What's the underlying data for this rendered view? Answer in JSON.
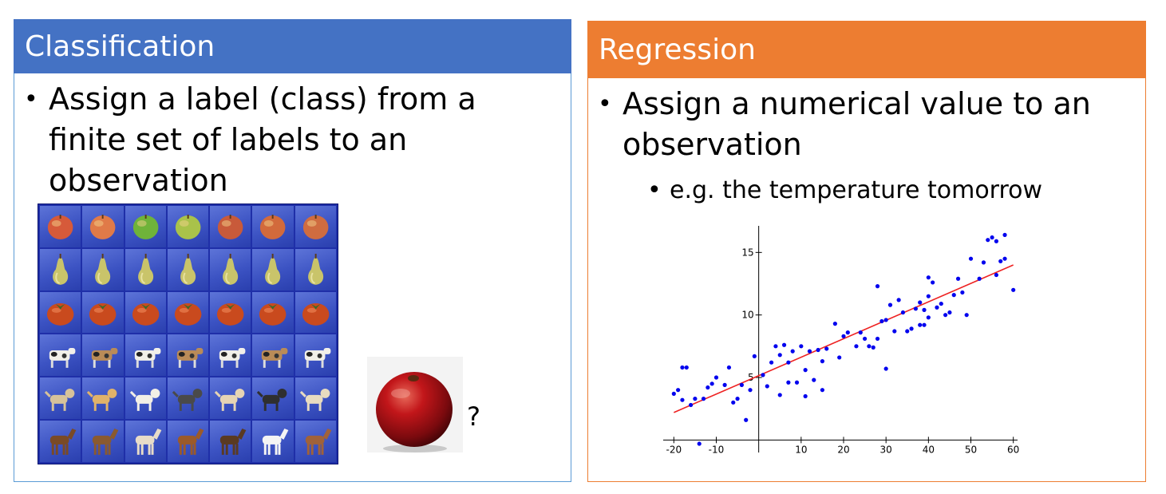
{
  "left": {
    "title": "Classification",
    "bullet": [
      "Assign a label (class) from a",
      "finite set of labels to an",
      "observation"
    ],
    "grid_rows": [
      "apple",
      "pear",
      "tomato",
      "cow",
      "dog",
      "horse"
    ],
    "query_mark": "?"
  },
  "right": {
    "title": "Regression",
    "bullet": [
      "Assign a numerical value to an",
      "observation"
    ],
    "sub_bullet": "e.g. the temperature tomorrow"
  },
  "bullet_char": "•",
  "colors": {
    "blue": "#4472c4",
    "orange": "#ed7d31",
    "points": "#0000ee",
    "fit_line": "#ee2222"
  },
  "chart_data": {
    "type": "scatter",
    "title": "",
    "xlabel": "",
    "ylabel": "",
    "xlim": [
      -21,
      61
    ],
    "ylim": [
      -1,
      17
    ],
    "xticks": [
      -20,
      -10,
      10,
      20,
      30,
      40,
      50,
      60
    ],
    "yticks": [
      5,
      10,
      15
    ],
    "grid": false,
    "fit_line": {
      "x": [
        -20,
        60
      ],
      "y": [
        2.2,
        14.0
      ]
    },
    "points": [
      [
        -20,
        3.7
      ],
      [
        -19,
        4
      ],
      [
        -18,
        3.2
      ],
      [
        -18,
        5.8
      ],
      [
        -17,
        5.8
      ],
      [
        -16,
        2.8
      ],
      [
        -15,
        3.3
      ],
      [
        -14,
        -0.3
      ],
      [
        -13,
        3.3
      ],
      [
        -12,
        4.2
      ],
      [
        -11,
        4.5
      ],
      [
        -10,
        5
      ],
      [
        -8,
        4.4
      ],
      [
        -7,
        5.8
      ],
      [
        -6,
        3
      ],
      [
        -5,
        3.3
      ],
      [
        -4,
        4.4
      ],
      [
        -3,
        1.6
      ],
      [
        -2,
        4
      ],
      [
        -1,
        6.7
      ],
      [
        1,
        5.2
      ],
      [
        2,
        4.3
      ],
      [
        3,
        6.2
      ],
      [
        4,
        7.5
      ],
      [
        5,
        6.8
      ],
      [
        5,
        3.6
      ],
      [
        6,
        7.6
      ],
      [
        7,
        4.6
      ],
      [
        7,
        6.2
      ],
      [
        8,
        7.1
      ],
      [
        9,
        4.6
      ],
      [
        10,
        7.5
      ],
      [
        11,
        5.6
      ],
      [
        11,
        3.5
      ],
      [
        12,
        7.1
      ],
      [
        13,
        4.8
      ],
      [
        14,
        7.2
      ],
      [
        15,
        6.3
      ],
      [
        15,
        4
      ],
      [
        16,
        7.3
      ],
      [
        18,
        9.3
      ],
      [
        19,
        6.6
      ],
      [
        20,
        8.3
      ],
      [
        21,
        8.6
      ],
      [
        23,
        7.5
      ],
      [
        24,
        8.6
      ],
      [
        25,
        8.1
      ],
      [
        26,
        7.5
      ],
      [
        27,
        7.4
      ],
      [
        28,
        8.1
      ],
      [
        28,
        12.3
      ],
      [
        29,
        9.5
      ],
      [
        30,
        5.7
      ],
      [
        30,
        9.6
      ],
      [
        31,
        10.8
      ],
      [
        32,
        8.7
      ],
      [
        33,
        11.2
      ],
      [
        34,
        10.2
      ],
      [
        35,
        8.7
      ],
      [
        36,
        8.9
      ],
      [
        37,
        10.5
      ],
      [
        38,
        9.2
      ],
      [
        38,
        11
      ],
      [
        39,
        9.2
      ],
      [
        39,
        10.4
      ],
      [
        40,
        9.8
      ],
      [
        40,
        11.5
      ],
      [
        40,
        13
      ],
      [
        41,
        12.6
      ],
      [
        42,
        10.6
      ],
      [
        43,
        10.9
      ],
      [
        44,
        10
      ],
      [
        45,
        10.2
      ],
      [
        46,
        11.6
      ],
      [
        47,
        12.9
      ],
      [
        48,
        11.8
      ],
      [
        49,
        10
      ],
      [
        50,
        14.5
      ],
      [
        52,
        12.9
      ],
      [
        53,
        14.2
      ],
      [
        54,
        16
      ],
      [
        55,
        16.2
      ],
      [
        56,
        15.9
      ],
      [
        56,
        13.2
      ],
      [
        57,
        14.3
      ],
      [
        58,
        16.4
      ],
      [
        58,
        14.5
      ],
      [
        60,
        12
      ]
    ]
  }
}
